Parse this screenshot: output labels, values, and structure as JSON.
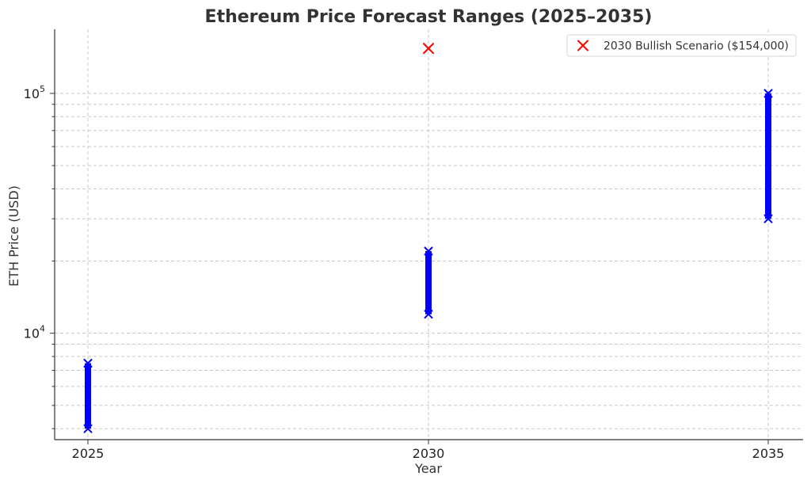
{
  "chart_data": {
    "type": "range",
    "title": "Ethereum Price Forecast Ranges (2025–2035)",
    "xlabel": "Year",
    "ylabel": "ETH Price (USD)",
    "x_scale": "categorical",
    "y_scale": "log",
    "ylim": [
      3600,
      185000
    ],
    "categories": [
      "2025",
      "2030",
      "2035"
    ],
    "y_ticks": [
      {
        "value": 10000,
        "label_base": "10",
        "label_exp": "4"
      },
      {
        "value": 100000,
        "label_base": "10",
        "label_exp": "5"
      }
    ],
    "grid": true,
    "ranges": [
      {
        "x": "2025",
        "low": 4000,
        "high": 7500
      },
      {
        "x": "2030",
        "low": 12000,
        "high": 22000
      },
      {
        "x": "2035",
        "low": 30000,
        "high": 100000
      }
    ],
    "range_color": "#0000ff",
    "points": [
      {
        "x": "2030",
        "y": 154000,
        "marker": "x",
        "color": "#ff0000"
      }
    ],
    "legend": {
      "position": "top-right",
      "entries": [
        {
          "label": "2030 Bullish Scenario ($154,000)",
          "marker": "x",
          "color": "#ff0000"
        }
      ]
    }
  }
}
